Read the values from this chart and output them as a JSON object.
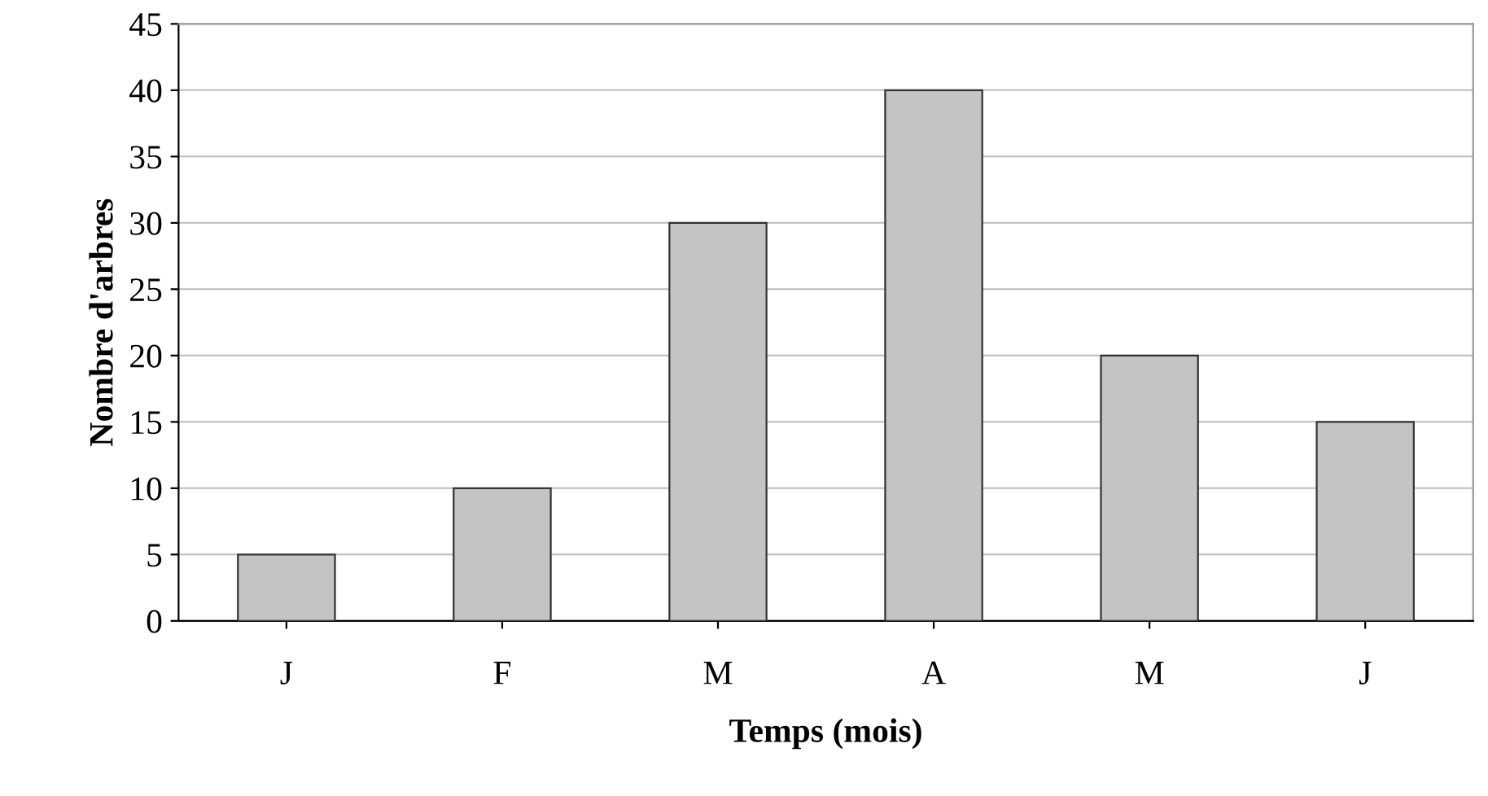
{
  "chart_data": {
    "type": "bar",
    "xlabel": "Temps (mois)",
    "ylabel": "Nombre d'arbres",
    "categories": [
      "J",
      "F",
      "M",
      "A",
      "M",
      "J"
    ],
    "values": [
      5,
      10,
      30,
      40,
      20,
      15
    ],
    "color": "#c4c4c4",
    "ylim": [
      0,
      45
    ],
    "yticks": [
      0,
      5,
      10,
      15,
      20,
      25,
      30,
      35,
      40,
      45
    ],
    "grid": "y"
  }
}
